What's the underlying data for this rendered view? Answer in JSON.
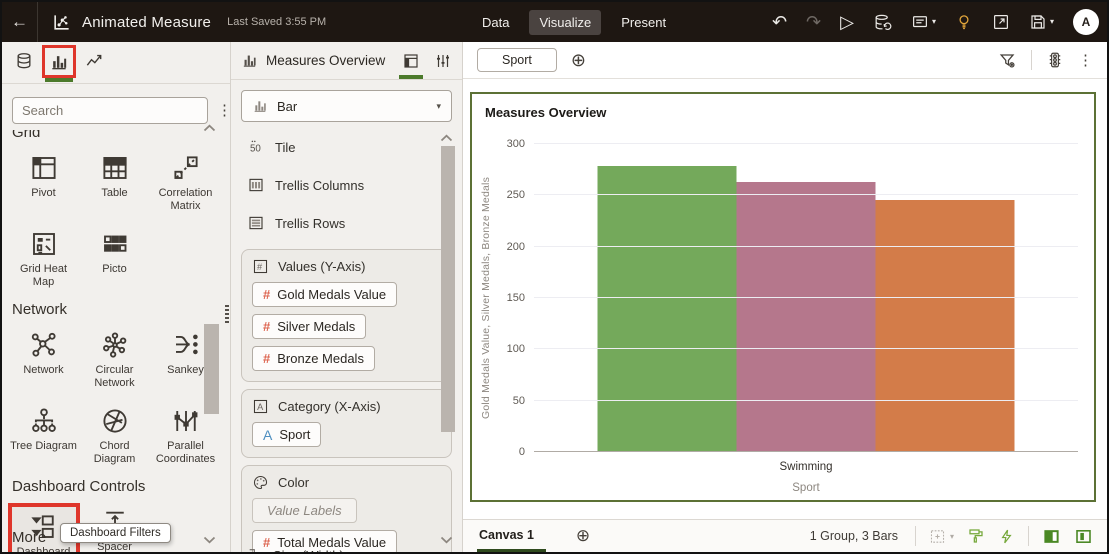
{
  "colors": {
    "accent_green": "#4c7a2b",
    "highlight_red": "#df362b",
    "topbar_bg": "#1e1712",
    "bar_green": "#74a95b",
    "bar_mauve": "#b5778c",
    "bar_orange": "#d37c49",
    "measure_icon_color": "#dd6550",
    "attribute_icon_color": "#4e8fc0",
    "lightbulb_gold": "#e2a63b",
    "chart_border": "#5c7135"
  },
  "topbar": {
    "title": "Animated Measure",
    "last_saved": "Last Saved 3:55 PM",
    "tabs": [
      {
        "label": "Data",
        "active": false
      },
      {
        "label": "Visualize",
        "active": true
      },
      {
        "label": "Present",
        "active": false
      }
    ],
    "avatar_initial": "A"
  },
  "left_panel": {
    "search_placeholder": "Search",
    "sections": [
      {
        "title": "Grid",
        "items": [
          {
            "label": "Pivot",
            "icon": "pivot"
          },
          {
            "label": "Table",
            "icon": "table"
          },
          {
            "label": "Correlation Matrix",
            "icon": "correlation-matrix"
          },
          {
            "label": "Grid Heat Map",
            "icon": "grid-heat-map"
          },
          {
            "label": "Picto",
            "icon": "picto"
          }
        ]
      },
      {
        "title": "Network",
        "items": [
          {
            "label": "Network",
            "icon": "network"
          },
          {
            "label": "Circular Network",
            "icon": "circular-network"
          },
          {
            "label": "Sankey",
            "icon": "sankey"
          },
          {
            "label": "Tree Diagram",
            "icon": "tree-diagram"
          },
          {
            "label": "Chord Diagram",
            "icon": "chord-diagram"
          },
          {
            "label": "Parallel Coordinates",
            "icon": "parallel-coordinates"
          }
        ]
      },
      {
        "title": "Dashboard Controls",
        "items": [
          {
            "label": "Dashboard Filters",
            "icon": "dashboard-filters",
            "highlighted": true
          },
          {
            "label": "Spacer",
            "icon": "spacer"
          }
        ]
      }
    ],
    "more_label": "More",
    "tooltip": "Dashboard Filters"
  },
  "grammar_panel": {
    "title": "Measures Overview",
    "chart_type": "Bar",
    "list_rows": [
      {
        "label": "Tile",
        "icon": "tile"
      },
      {
        "label": "Trellis Columns",
        "icon": "trellis-columns"
      },
      {
        "label": "Trellis Rows",
        "icon": "trellis-rows"
      }
    ],
    "groups": [
      {
        "title": "Values (Y-Axis)",
        "icon": "values-box",
        "pills": [
          {
            "label": "Gold Medals Value",
            "type": "measure"
          },
          {
            "label": "Silver Medals",
            "type": "measure"
          },
          {
            "label": "Bronze Medals",
            "type": "measure"
          }
        ]
      },
      {
        "title": "Category (X-Axis)",
        "icon": "category-box",
        "pills": [
          {
            "label": "Sport",
            "type": "attribute"
          }
        ]
      },
      {
        "title": "Color",
        "icon": "palette",
        "ghost": "Value Labels",
        "pills": [
          {
            "label": "Total Medals Value",
            "type": "measure"
          }
        ]
      }
    ],
    "clipped_row": {
      "label": "Size (Width)"
    }
  },
  "canvas": {
    "filter_chip": "Sport",
    "footer": {
      "tab": "Canvas 1",
      "status": "1 Group, 3 Bars"
    }
  },
  "chart_data": {
    "type": "bar",
    "title": "Measures Overview",
    "categories": [
      "Swimming"
    ],
    "series": [
      {
        "name": "Gold Medals Value",
        "values": [
          270
        ],
        "color": "#74a95b"
      },
      {
        "name": "Silver Medals",
        "values": [
          255
        ],
        "color": "#b5778c"
      },
      {
        "name": "Bronze Medals",
        "values": [
          238
        ],
        "color": "#d37c49"
      }
    ],
    "xlabel": "Sport",
    "ylabel": "Gold Medals Value, Silver Medals, Bronze Medals",
    "ylim": [
      0,
      300
    ],
    "yticks": [
      0,
      50,
      100,
      150,
      200,
      250,
      300
    ],
    "grid": true,
    "legend": "none"
  }
}
